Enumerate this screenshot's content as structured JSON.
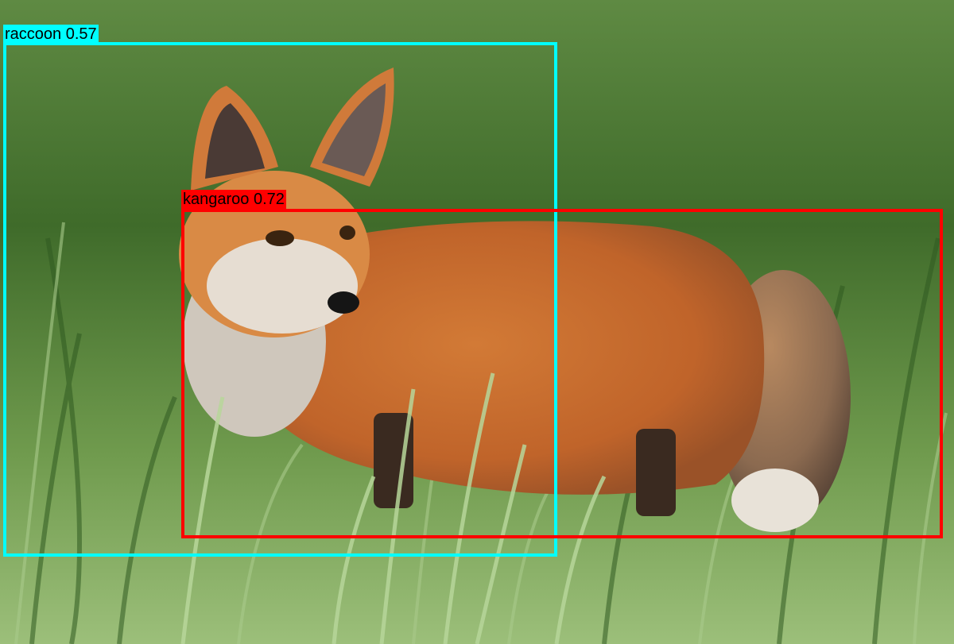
{
  "detections": [
    {
      "label": "raccoon 0.57",
      "color": "#00FFFF"
    },
    {
      "label": "kangaroo 0.72",
      "color": "#FF0000"
    }
  ],
  "image": {
    "subject": "fox-photo",
    "colors": {
      "grass_dark": "#3f6b2a",
      "grass_light": "#8fb56a",
      "fur": "#c8682a",
      "fur_light": "#e8a060"
    }
  }
}
